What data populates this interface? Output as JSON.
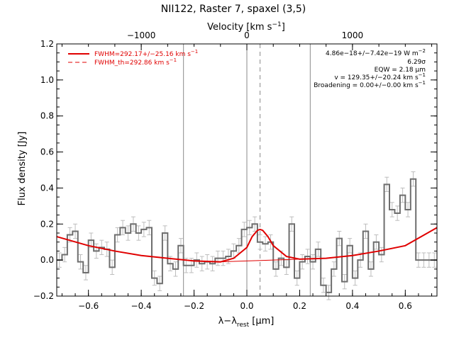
{
  "chart_data": {
    "type": "line",
    "title": "NII122, Raster 7, spaxel (3,5)",
    "xlabel": "λ−λ",
    "xlabel_sub": "rest",
    "xlabel_unit": "[μm]",
    "ylabel": "Flux density [Jy]",
    "top_axis_label": "Velocity [km s",
    "top_axis_label_sup": "−1",
    "top_axis_label_end": "]",
    "xlim": [
      -0.72,
      0.72
    ],
    "ylim": [
      -0.2,
      1.2
    ],
    "x_ticks": [
      -0.6,
      -0.4,
      -0.2,
      0.0,
      0.2,
      0.4,
      0.6
    ],
    "x_tick_labels": [
      "−0.6",
      "−0.4",
      "−0.2",
      "0.0",
      "0.2",
      "0.4",
      "0.6"
    ],
    "y_ticks": [
      -0.2,
      0.0,
      0.2,
      0.4,
      0.6,
      0.8,
      1.0,
      1.2
    ],
    "y_tick_labels": [
      "−0.2",
      "0.0",
      "0.2",
      "0.4",
      "0.6",
      "0.8",
      "1.0",
      "1.2"
    ],
    "top_ticks_um": [
      -0.4,
      0.0,
      0.4
    ],
    "top_tick_labels": [
      "−1000",
      "0",
      "1000"
    ],
    "vertical_lines": [
      {
        "x": -0.24,
        "style": "solid"
      },
      {
        "x": 0.0,
        "style": "solid"
      },
      {
        "x": 0.05,
        "style": "dashed"
      },
      {
        "x": 0.24,
        "style": "solid"
      }
    ],
    "legend": [
      {
        "label": "FWHM=292.17+/−25.16 km s",
        "sup": "−1",
        "style": "solid",
        "color": "#e00000"
      },
      {
        "label": "FWHM_th=292.86 km s",
        "sup": "−1",
        "style": "dashed",
        "color": "#e00000"
      }
    ],
    "annotations": [
      {
        "text": "4.86e−18+/−7.42e−19 W m",
        "sup": "−2"
      },
      {
        "text": "6.29σ"
      },
      {
        "text": "EQW = 2.18 μm"
      },
      {
        "text": "v = 129.35+/−20.24 km s",
        "sup": "−1"
      },
      {
        "text": "Broadening = 0.00+/−0.00 km s",
        "sup": "−1"
      }
    ],
    "series": [
      {
        "style": "step",
        "color": "#6e6e6e",
        "x": [
          -0.71,
          -0.69,
          -0.67,
          -0.65,
          -0.63,
          -0.61,
          -0.59,
          -0.57,
          -0.55,
          -0.53,
          -0.51,
          -0.49,
          -0.47,
          -0.45,
          -0.43,
          -0.41,
          -0.39,
          -0.37,
          -0.35,
          -0.33,
          -0.31,
          -0.29,
          -0.27,
          -0.25,
          -0.23,
          -0.21,
          -0.19,
          -0.17,
          -0.15,
          -0.13,
          -0.11,
          -0.09,
          -0.07,
          -0.05,
          -0.03,
          -0.01,
          0.01,
          0.03,
          0.05,
          0.07,
          0.09,
          0.11,
          0.13,
          0.15,
          0.17,
          0.19,
          0.21,
          0.23,
          0.25,
          0.27,
          0.29,
          0.31,
          0.33,
          0.35,
          0.37,
          0.39,
          0.41,
          0.43,
          0.45,
          0.47,
          0.49,
          0.51,
          0.53,
          0.55,
          0.57,
          0.59,
          0.61,
          0.63,
          0.65,
          0.67,
          0.69,
          0.71
        ],
        "values": [
          0.0,
          0.03,
          0.14,
          0.16,
          -0.01,
          -0.07,
          0.11,
          0.05,
          0.07,
          0.06,
          -0.04,
          0.14,
          0.18,
          0.15,
          0.2,
          0.15,
          0.17,
          0.18,
          -0.1,
          -0.13,
          0.15,
          -0.02,
          -0.05,
          0.08,
          -0.03,
          -0.03,
          0.0,
          -0.02,
          -0.01,
          -0.02,
          0.01,
          0.01,
          0.02,
          0.05,
          0.08,
          0.17,
          0.18,
          0.2,
          0.1,
          0.09,
          0.1,
          -0.05,
          0.01,
          -0.04,
          0.2,
          -0.1,
          -0.01,
          0.02,
          -0.01,
          0.06,
          -0.14,
          -0.18,
          -0.05,
          0.12,
          -0.12,
          0.08,
          -0.1,
          0.0,
          0.16,
          -0.05,
          0.1,
          0.03,
          0.42,
          0.28,
          0.26,
          0.36,
          0.28,
          0.45,
          0.0,
          0.0,
          0.0,
          0.0
        ],
        "errors": [
          0.04,
          0.04,
          0.04,
          0.04,
          0.04,
          0.04,
          0.04,
          0.04,
          0.04,
          0.04,
          0.04,
          0.04,
          0.04,
          0.04,
          0.04,
          0.04,
          0.04,
          0.04,
          0.04,
          0.04,
          0.04,
          0.04,
          0.04,
          0.04,
          0.04,
          0.04,
          0.04,
          0.04,
          0.04,
          0.04,
          0.04,
          0.04,
          0.04,
          0.04,
          0.04,
          0.04,
          0.04,
          0.04,
          0.04,
          0.04,
          0.04,
          0.04,
          0.04,
          0.04,
          0.04,
          0.04,
          0.04,
          0.04,
          0.04,
          0.04,
          0.04,
          0.04,
          0.04,
          0.04,
          0.04,
          0.04,
          0.04,
          0.04,
          0.04,
          0.04,
          0.04,
          0.04,
          0.04,
          0.04,
          0.04,
          0.04,
          0.04,
          0.04,
          0.04,
          0.04,
          0.04,
          0.04
        ]
      },
      {
        "style": "line",
        "color": "#e00000",
        "x": [
          -0.72,
          -0.6,
          -0.5,
          -0.4,
          -0.3,
          -0.2,
          -0.1,
          -0.05,
          0.0,
          0.02,
          0.04,
          0.05,
          0.06,
          0.08,
          0.1,
          0.15,
          0.2,
          0.3,
          0.4,
          0.5,
          0.6,
          0.72
        ],
        "values": [
          0.13,
          0.08,
          0.05,
          0.025,
          0.01,
          -0.005,
          -0.01,
          0.01,
          0.07,
          0.13,
          0.165,
          0.17,
          0.165,
          0.13,
          0.08,
          0.02,
          0.005,
          0.01,
          0.025,
          0.05,
          0.08,
          0.18
        ]
      },
      {
        "style": "line",
        "color": "#e00000",
        "x": [
          -0.1,
          0.0,
          0.1,
          0.2
        ],
        "values": [
          -0.01,
          -0.005,
          0.0,
          0.005
        ]
      }
    ]
  }
}
